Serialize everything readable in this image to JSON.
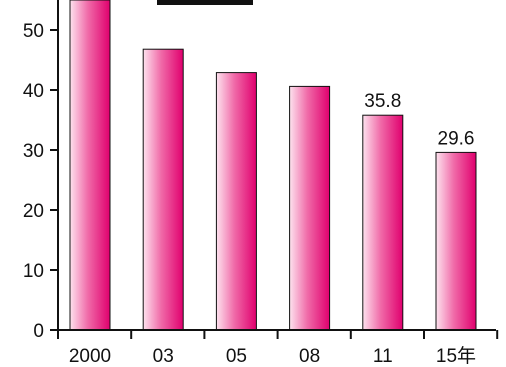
{
  "chart_data": {
    "type": "bar",
    "title": "",
    "xlabel": "",
    "ylabel": "",
    "categories": [
      "2000",
      "03",
      "05",
      "08",
      "11",
      "15年"
    ],
    "series": [
      {
        "values": [
          56.0,
          46.8,
          42.9,
          40.6,
          35.8,
          29.6
        ]
      }
    ],
    "data_labels": [
      "",
      "",
      "",
      "",
      "35.8",
      "29.6"
    ],
    "y_ticks": [
      "0",
      "10",
      "20",
      "30",
      "40",
      "50"
    ],
    "ylim": [
      0,
      56
    ],
    "grid": false,
    "legend": "none",
    "colors": {
      "bar_dark": "#e0006e",
      "bar_mid": "#f06aa8",
      "bar_light": "#fde2ee",
      "axis": "#111111"
    }
  }
}
